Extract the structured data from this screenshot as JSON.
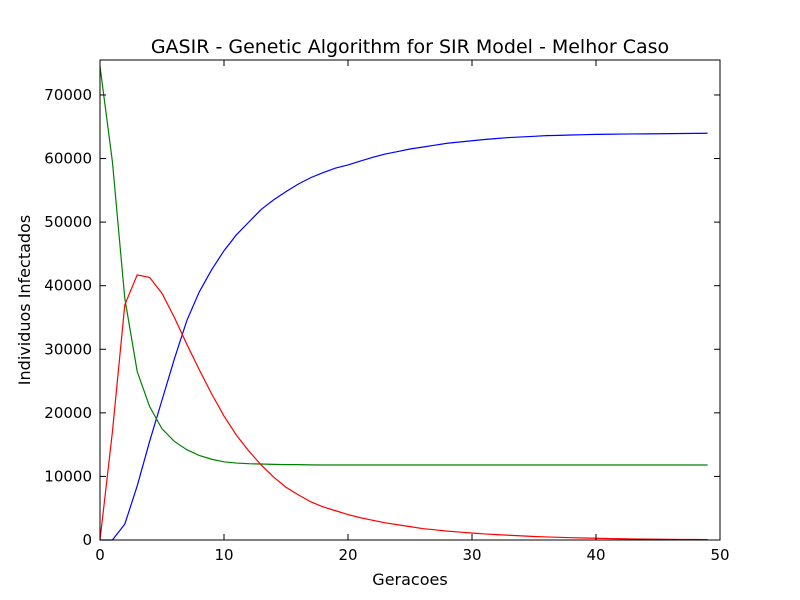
{
  "chart_data": {
    "type": "line",
    "title": "GASIR - Genetic Algorithm for SIR Model - Melhor Caso",
    "xlabel": "Geracoes",
    "ylabel": "Individuos Infectados",
    "xlim": [
      0,
      50
    ],
    "ylim": [
      0,
      75500
    ],
    "xticks": [
      0,
      10,
      20,
      30,
      40,
      50
    ],
    "yticks": [
      0,
      10000,
      20000,
      30000,
      40000,
      50000,
      60000,
      70000
    ],
    "grid": false,
    "legend": "none",
    "x": [
      0,
      1,
      2,
      3,
      4,
      5,
      6,
      7,
      8,
      9,
      10,
      11,
      12,
      13,
      14,
      15,
      16,
      17,
      18,
      19,
      20,
      21,
      22,
      23,
      24,
      25,
      26,
      27,
      28,
      29,
      30,
      31,
      32,
      33,
      34,
      35,
      36,
      37,
      38,
      39,
      40,
      41,
      42,
      43,
      44,
      45,
      46,
      47,
      48,
      49
    ],
    "series": [
      {
        "color": "#0000ff",
        "values": [
          0,
          0,
          2500,
          8500,
          15500,
          22000,
          28500,
          34500,
          39000,
          42500,
          45500,
          48000,
          50000,
          52000,
          53500,
          54800,
          56000,
          57000,
          57800,
          58500,
          59000,
          59600,
          60200,
          60700,
          61100,
          61500,
          61800,
          62100,
          62400,
          62600,
          62800,
          63000,
          63150,
          63300,
          63400,
          63500,
          63600,
          63650,
          63700,
          63750,
          63800,
          63820,
          63850,
          63870,
          63880,
          63900,
          63920,
          63940,
          63960,
          63980
        ]
      },
      {
        "color": "#008000",
        "values": [
          74500,
          59500,
          38000,
          26500,
          21000,
          17500,
          15500,
          14200,
          13300,
          12700,
          12300,
          12100,
          12000,
          11950,
          11900,
          11850,
          11850,
          11820,
          11800,
          11800,
          11800,
          11800,
          11800,
          11800,
          11800,
          11800,
          11800,
          11800,
          11800,
          11800,
          11800,
          11800,
          11800,
          11800,
          11800,
          11800,
          11800,
          11800,
          11800,
          11800,
          11800,
          11800,
          11800,
          11800,
          11800,
          11800,
          11800,
          11800,
          11800,
          11800
        ]
      },
      {
        "color": "#ff0000",
        "values": [
          0,
          17000,
          37000,
          41700,
          41300,
          38800,
          35000,
          30800,
          26800,
          23000,
          19500,
          16500,
          14000,
          11800,
          9900,
          8300,
          7100,
          6000,
          5200,
          4600,
          4000,
          3500,
          3100,
          2700,
          2400,
          2100,
          1800,
          1600,
          1400,
          1250,
          1100,
          950,
          850,
          750,
          650,
          550,
          480,
          420,
          360,
          310,
          270,
          230,
          200,
          170,
          150,
          130,
          110,
          90,
          75,
          60
        ]
      }
    ]
  }
}
